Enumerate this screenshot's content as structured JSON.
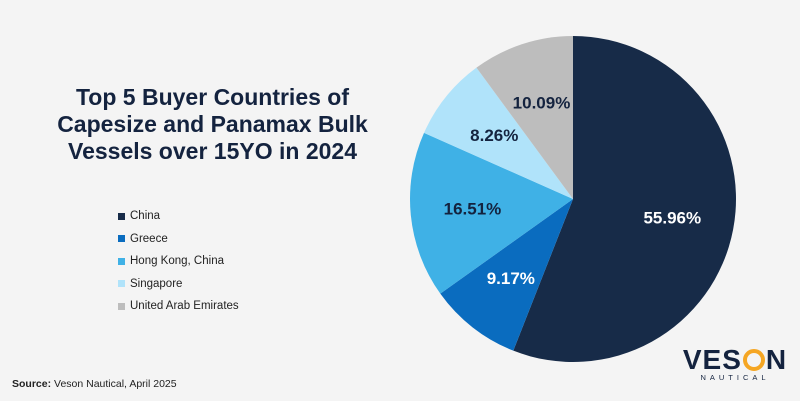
{
  "chart_data": {
    "type": "pie",
    "title": "Top 5 Buyer Countries of Capesize and Panamax Bulk Vessels over 15YO in 2024",
    "categories": [
      "China",
      "Greece",
      "Hong Kong, China",
      "Singapore",
      "United Arab Emirates"
    ],
    "values": [
      55.96,
      9.17,
      16.51,
      8.26,
      10.09
    ],
    "labels": [
      "55.96%",
      "9.17%",
      "16.51%",
      "8.26%",
      "10.09%"
    ],
    "colors": [
      "#172b48",
      "#0a6cbf",
      "#3fb1e6",
      "#b0e3fa",
      "#bdbdbd"
    ],
    "label_colors": [
      "#ffffff",
      "#ffffff",
      "#14233f",
      "#14233f",
      "#14233f"
    ],
    "legend_position": "left",
    "start_angle_deg": 0,
    "direction": "clockwise"
  },
  "source": {
    "label": "Source:",
    "text": "Veson Nautical, April 2025"
  },
  "logo": {
    "word": "VESON",
    "sub": "NAUTICAL"
  }
}
